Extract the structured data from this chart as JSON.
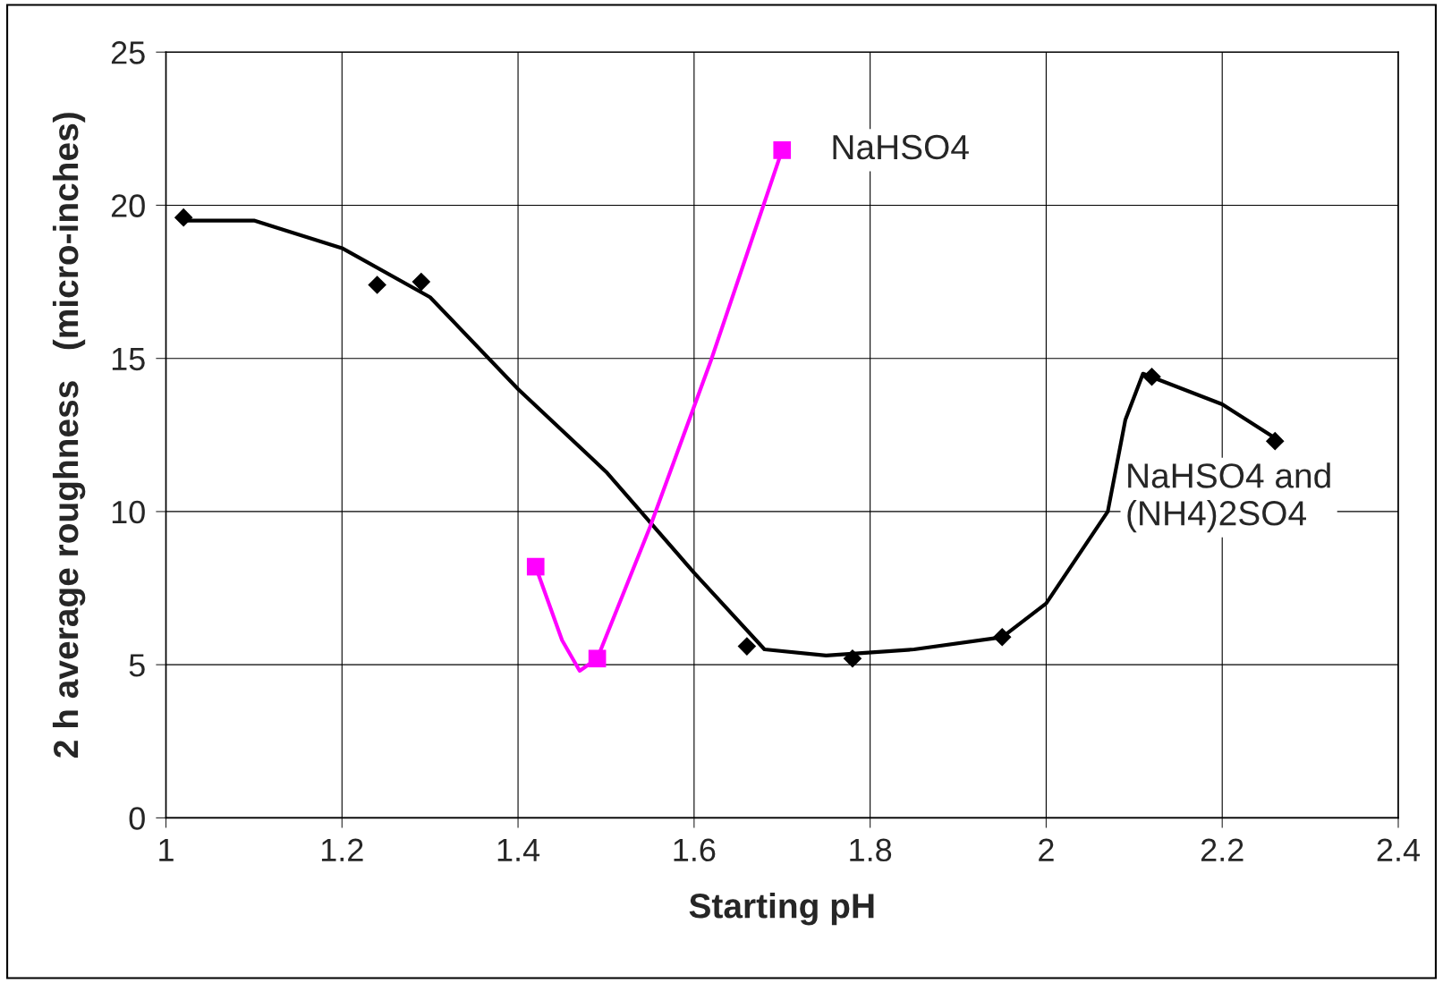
{
  "chart_data": {
    "type": "scatter",
    "xlabel": "Starting pH",
    "ylabel": "2 h average roughness   (micro-inches)",
    "xlim": [
      1,
      2.4
    ],
    "xticks": [
      1,
      1.2,
      1.4,
      1.6,
      1.8,
      2,
      2.2,
      2.4
    ],
    "ylim": [
      0,
      25
    ],
    "yticks": [
      0,
      5,
      10,
      15,
      20,
      25
    ],
    "grid": true,
    "legend": false,
    "series": [
      {
        "type": "line",
        "color": "#000000",
        "marker": "none",
        "x": [
          1.02,
          1.1,
          1.2,
          1.3,
          1.4,
          1.5,
          1.6,
          1.68,
          1.75,
          1.85,
          1.95,
          2.0,
          2.07,
          2.09,
          2.11,
          2.2,
          2.26
        ],
        "values": [
          19.5,
          19.5,
          18.6,
          17.0,
          14.0,
          11.3,
          8.0,
          5.5,
          5.3,
          5.5,
          5.9,
          7.0,
          10.0,
          13.0,
          14.5,
          13.5,
          12.4
        ]
      },
      {
        "type": "line",
        "color": "#ff00ff",
        "marker": "none",
        "x": [
          1.42,
          1.45,
          1.47,
          1.49,
          1.55,
          1.62,
          1.7
        ],
        "values": [
          8.2,
          5.8,
          4.8,
          5.2,
          9.5,
          15.0,
          21.8
        ]
      },
      {
        "name": "NaHSO4 and (NH4)2SO4",
        "color": "#000000",
        "marker": "diamond",
        "x": [
          1.02,
          1.24,
          1.29,
          1.66,
          1.78,
          1.95,
          2.12,
          2.26
        ],
        "values": [
          19.6,
          17.4,
          17.5,
          5.6,
          5.2,
          5.9,
          14.4,
          12.3
        ]
      },
      {
        "name": "NaHSO4",
        "color": "#ff00ff",
        "marker": "square",
        "x": [
          1.42,
          1.49,
          1.7
        ],
        "values": [
          8.2,
          5.2,
          21.8
        ]
      }
    ]
  }
}
